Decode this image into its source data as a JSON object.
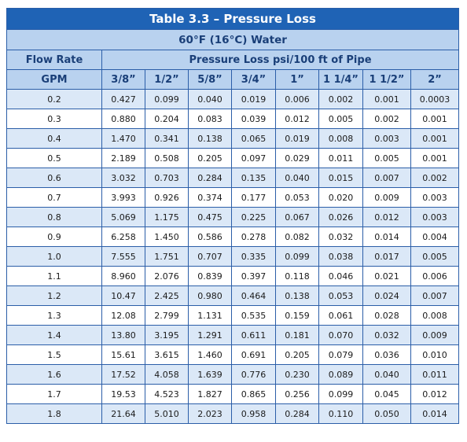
{
  "table": {
    "title": "Table 3.3 – Pressure Loss",
    "subtitle": "60°F (16°C) Water",
    "flow_rate_label": "Flow Rate",
    "pressure_loss_label": "Pressure Loss psi/100 ft of Pipe",
    "gpm_label": "GPM",
    "pipe_sizes": [
      "3/8”",
      "1/2”",
      "5/8”",
      "3/4”",
      "1”",
      "1 1/4”",
      "1 1/2”",
      "2”"
    ],
    "rows": [
      {
        "gpm": "0.2",
        "values": [
          "0.427",
          "0.099",
          "0.040",
          "0.019",
          "0.006",
          "0.002",
          "0.001",
          "0.0003"
        ]
      },
      {
        "gpm": "0.3",
        "values": [
          "0.880",
          "0.204",
          "0.083",
          "0.039",
          "0.012",
          "0.005",
          "0.002",
          "0.001"
        ]
      },
      {
        "gpm": "0.4",
        "values": [
          "1.470",
          "0.341",
          "0.138",
          "0.065",
          "0.019",
          "0.008",
          "0.003",
          "0.001"
        ]
      },
      {
        "gpm": "0.5",
        "values": [
          "2.189",
          "0.508",
          "0.205",
          "0.097",
          "0.029",
          "0.011",
          "0.005",
          "0.001"
        ]
      },
      {
        "gpm": "0.6",
        "values": [
          "3.032",
          "0.703",
          "0.284",
          "0.135",
          "0.040",
          "0.015",
          "0.007",
          "0.002"
        ]
      },
      {
        "gpm": "0.7",
        "values": [
          "3.993",
          "0.926",
          "0.374",
          "0.177",
          "0.053",
          "0.020",
          "0.009",
          "0.003"
        ]
      },
      {
        "gpm": "0.8",
        "values": [
          "5.069",
          "1.175",
          "0.475",
          "0.225",
          "0.067",
          "0.026",
          "0.012",
          "0.003"
        ]
      },
      {
        "gpm": "0.9",
        "values": [
          "6.258",
          "1.450",
          "0.586",
          "0.278",
          "0.082",
          "0.032",
          "0.014",
          "0.004"
        ]
      },
      {
        "gpm": "1.0",
        "values": [
          "7.555",
          "1.751",
          "0.707",
          "0.335",
          "0.099",
          "0.038",
          "0.017",
          "0.005"
        ]
      },
      {
        "gpm": "1.1",
        "values": [
          "8.960",
          "2.076",
          "0.839",
          "0.397",
          "0.118",
          "0.046",
          "0.021",
          "0.006"
        ]
      },
      {
        "gpm": "1.2",
        "values": [
          "10.47",
          "2.425",
          "0.980",
          "0.464",
          "0.138",
          "0.053",
          "0.024",
          "0.007"
        ]
      },
      {
        "gpm": "1.3",
        "values": [
          "12.08",
          "2.799",
          "1.131",
          "0.535",
          "0.159",
          "0.061",
          "0.028",
          "0.008"
        ]
      },
      {
        "gpm": "1.4",
        "values": [
          "13.80",
          "3.195",
          "1.291",
          "0.611",
          "0.181",
          "0.070",
          "0.032",
          "0.009"
        ]
      },
      {
        "gpm": "1.5",
        "values": [
          "15.61",
          "3.615",
          "1.460",
          "0.691",
          "0.205",
          "0.079",
          "0.036",
          "0.010"
        ]
      },
      {
        "gpm": "1.6",
        "values": [
          "17.52",
          "4.058",
          "1.639",
          "0.776",
          "0.230",
          "0.089",
          "0.040",
          "0.011"
        ]
      },
      {
        "gpm": "1.7",
        "values": [
          "19.53",
          "4.523",
          "1.827",
          "0.865",
          "0.256",
          "0.099",
          "0.045",
          "0.012"
        ]
      },
      {
        "gpm": "1.8",
        "values": [
          "21.64",
          "5.010",
          "2.023",
          "0.958",
          "0.284",
          "0.110",
          "0.050",
          "0.014"
        ]
      }
    ]
  },
  "colors": {
    "title_bg": "#1f63b5",
    "header_bg": "#b9d2ef",
    "alt_row_bg": "#dbe8f7",
    "border": "#2b5ea8",
    "header_text": "#1a3f78"
  }
}
